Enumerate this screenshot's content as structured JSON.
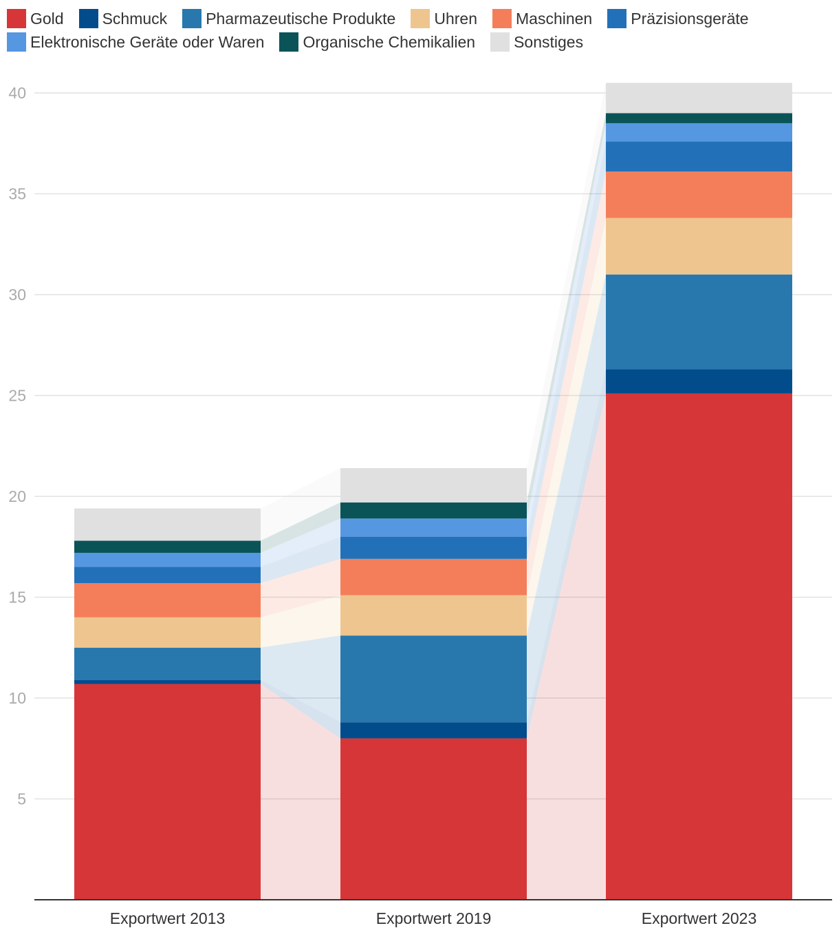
{
  "chart_data": {
    "type": "bar",
    "stacked": true,
    "title": "",
    "xlabel": "",
    "ylabel": "",
    "ylim": [
      0,
      40
    ],
    "yticks": [
      5,
      10,
      15,
      20,
      25,
      30,
      35,
      40
    ],
    "grid": true,
    "legend_position": "top-left",
    "categories": [
      "Exportwert 2013",
      "Exportwert 2019",
      "Exportwert 2023"
    ],
    "series": [
      {
        "name": "Gold",
        "color": "#d63638",
        "values": [
          10.7,
          8.0,
          25.1
        ]
      },
      {
        "name": "Schmuck",
        "color": "#034c8c",
        "values": [
          0.2,
          0.8,
          1.2
        ]
      },
      {
        "name": "Pharmazeutische Produkte",
        "color": "#2878ae",
        "values": [
          1.6,
          4.3,
          4.7
        ]
      },
      {
        "name": "Uhren",
        "color": "#efc58f",
        "values": [
          1.5,
          2.0,
          2.8
        ]
      },
      {
        "name": "Maschinen",
        "color": "#f47e5a",
        "values": [
          1.7,
          1.8,
          2.3
        ]
      },
      {
        "name": "Präzisionsgeräte",
        "color": "#2271b8",
        "values": [
          0.8,
          1.1,
          1.5
        ]
      },
      {
        "name": "Elektronische Geräte oder Waren",
        "color": "#5597e0",
        "values": [
          0.7,
          0.9,
          0.9
        ]
      },
      {
        "name": "Organische Chemikalien",
        "color": "#0a5458",
        "values": [
          0.6,
          0.8,
          0.5
        ]
      },
      {
        "name": "Sonstiges",
        "color": "#e0e0e0",
        "values": [
          1.6,
          1.7,
          1.5
        ]
      }
    ]
  }
}
